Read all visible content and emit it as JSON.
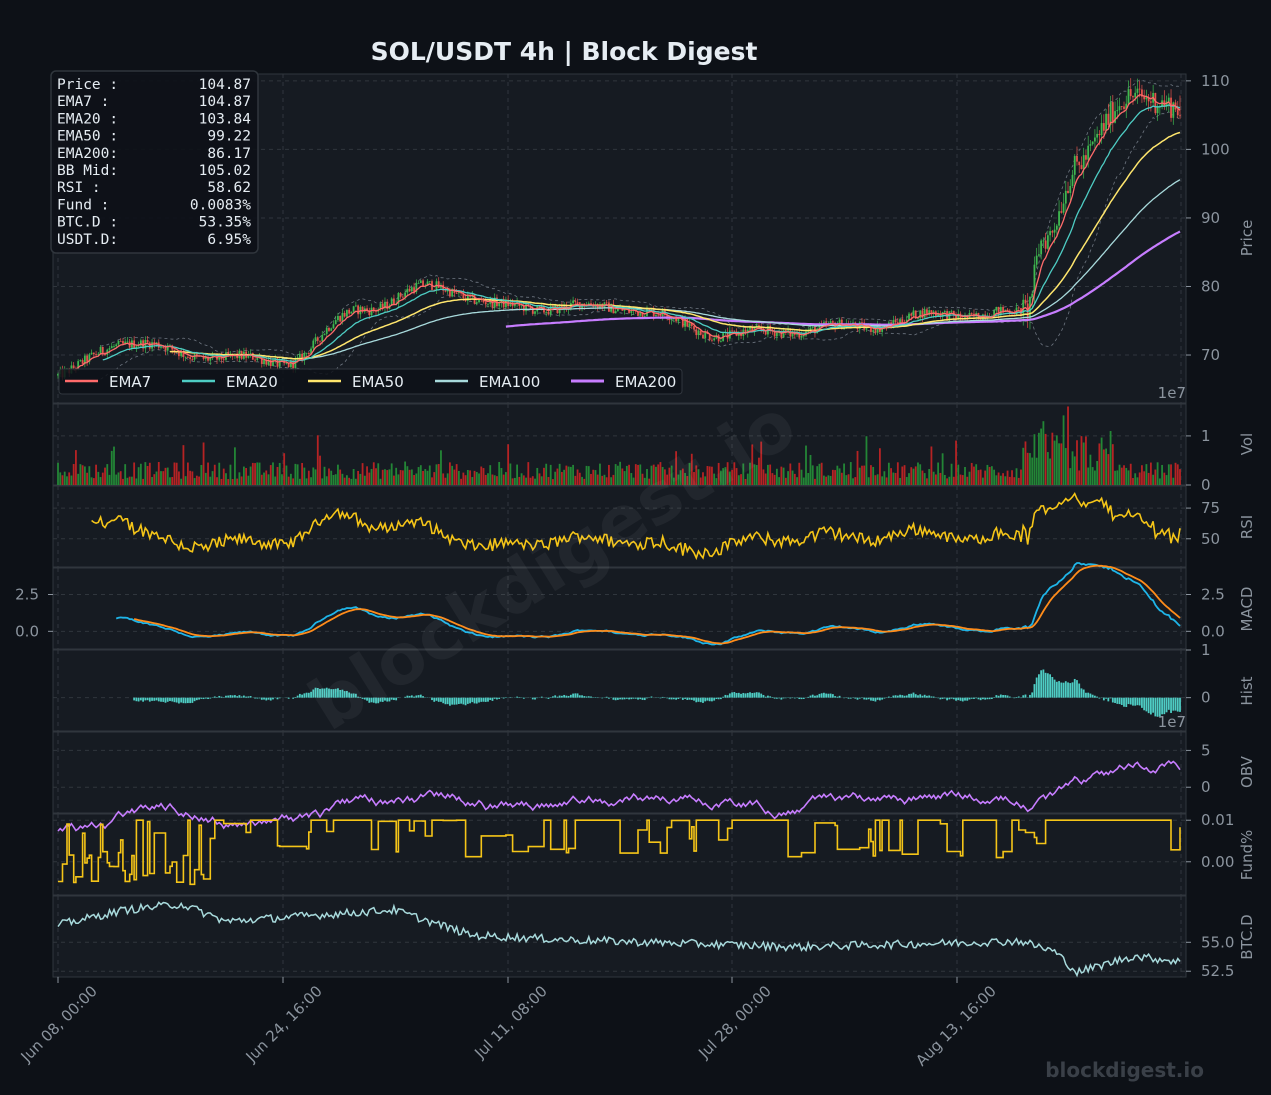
{
  "title": "SOL/USDT  4h  |  Block Digest",
  "watermark": "blockdigest.io",
  "footer_brand": "blockdigest.io",
  "colors": {
    "background": "#0d1117",
    "panel": "#161b22",
    "grid": "#30363d",
    "up": "#3fb950",
    "down": "#e5534b",
    "ema7": "#ff6b6b",
    "ema20": "#4ecdc4",
    "ema50": "#ffe66d",
    "ema100": "#a8dadc",
    "ema200": "#c77dff",
    "rsi": "#f5c518",
    "macd": "#1fb5e8",
    "signal": "#ff8c1a",
    "hist": "#4ecdc4",
    "obv": "#c77dff",
    "fund": "#f5c518",
    "btcd": "#a8dadc"
  },
  "info_box": {
    "rows": [
      {
        "label": "Price :",
        "value": "104.87"
      },
      {
        "label": "EMA7  :",
        "value": "104.87"
      },
      {
        "label": "EMA20 :",
        "value": "103.84"
      },
      {
        "label": "EMA50 :",
        "value": "99.22"
      },
      {
        "label": "EMA200:",
        "value": "86.17"
      },
      {
        "label": "BB Mid:",
        "value": "105.02"
      },
      {
        "label": "RSI   :",
        "value": "58.62"
      },
      {
        "label": "Fund  :",
        "value": "0.0083%"
      },
      {
        "label": "BTC.D :",
        "value": "53.35%"
      },
      {
        "label": "USDT.D:",
        "value": "6.95%"
      }
    ]
  },
  "chart_data": {
    "type": "line",
    "title": "SOL/USDT  4h  |  Block Digest",
    "x_tick_labels": [
      "Jun 08, 00:00",
      "Jun 24, 16:00",
      "Jul 11, 08:00",
      "Jul 28, 00:00",
      "Aug 13, 16:00"
    ],
    "x_range": [
      "Jun 08, 00:00",
      "Aug 30, 16:00"
    ],
    "price_panel": {
      "ylabel": "Price",
      "ylim": [
        63,
        111
      ],
      "yticks": [
        70,
        80,
        90,
        100,
        110
      ],
      "offset_text": "1e7",
      "legend": [
        "EMA7",
        "EMA20",
        "EMA50",
        "EMA100",
        "EMA200"
      ],
      "legend_location": "lower-left",
      "key_closes": [
        {
          "x": "Jun 08, 00:00",
          "close": 67
        },
        {
          "x": "Jun 13, 00:00",
          "close": 72
        },
        {
          "x": "Jun 18, 00:00",
          "close": 70
        },
        {
          "x": "Jun 24, 16:00",
          "close": 69
        },
        {
          "x": "Jul 01, 00:00",
          "close": 77
        },
        {
          "x": "Jul 06, 00:00",
          "close": 80
        },
        {
          "x": "Jul 11, 08:00",
          "close": 77
        },
        {
          "x": "Jul 20, 00:00",
          "close": 77
        },
        {
          "x": "Jul 28, 00:00",
          "close": 73
        },
        {
          "x": "Aug 05, 00:00",
          "close": 74
        },
        {
          "x": "Aug 13, 16:00",
          "close": 76
        },
        {
          "x": "Aug 19, 00:00",
          "close": 76
        },
        {
          "x": "Aug 21, 00:00",
          "close": 88
        },
        {
          "x": "Aug 24, 00:00",
          "close": 97
        },
        {
          "x": "Aug 28, 00:00",
          "close": 109
        },
        {
          "x": "Aug 30, 16:00",
          "close": 104.87
        }
      ],
      "ema_last": {
        "EMA7": 104.87,
        "EMA20": 103.84,
        "EMA50": 99.22,
        "EMA100": 93,
        "EMA200": 86.17
      }
    },
    "volume_panel": {
      "ylabel": "Vol",
      "yticks": [
        0,
        1
      ],
      "max": 1.65,
      "units": "1e7"
    },
    "rsi_panel": {
      "ylabel": "RSI",
      "yticks": [
        50,
        75
      ],
      "ylim": [
        27,
        93
      ],
      "last": 58.62
    },
    "macd_panel": {
      "ylabel": "MACD",
      "yticks": [
        0.0,
        2.5
      ],
      "ylim": [
        -1.2,
        4.3
      ],
      "series": [
        "MACD",
        "Signal"
      ]
    },
    "hist_panel": {
      "ylabel": "Hist",
      "yticks": [
        0,
        1
      ],
      "ylim": [
        -0.7,
        1.0
      ]
    },
    "obv_panel": {
      "ylabel": "OBV",
      "yticks": [
        0,
        5
      ],
      "ylim": [
        -3.5,
        7.5
      ],
      "offset_text": "1e7"
    },
    "funding_panel": {
      "ylabel": "Fund%",
      "yticks": [
        "0.00",
        "0.01"
      ],
      "ylim": [
        -0.008,
        0.0115
      ],
      "last": 0.0083
    },
    "btcd_panel": {
      "ylabel": "BTC.D",
      "yticks": [
        52.5,
        55.0
      ],
      "ylim": [
        52.0,
        59.0
      ],
      "last": 53.35
    }
  }
}
